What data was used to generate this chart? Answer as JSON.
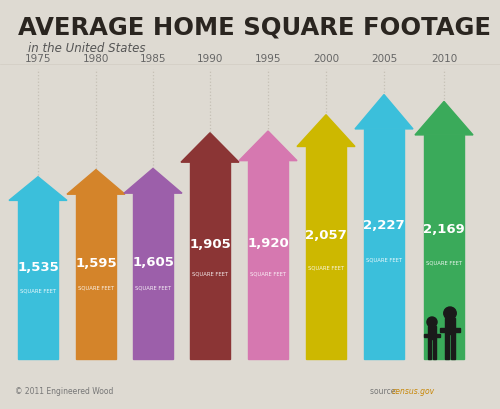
{
  "title": "AVERAGE HOME SQUARE FOOTAGE",
  "subtitle": "in the United States",
  "years": [
    "1975",
    "1980",
    "1985",
    "1990",
    "1995",
    "2000",
    "2005",
    "2010"
  ],
  "values": [
    1535,
    1595,
    1605,
    1905,
    1920,
    2057,
    2227,
    2169
  ],
  "colors": [
    "#3bbfdb",
    "#d4842a",
    "#9c5faa",
    "#8b3535",
    "#d678b0",
    "#cdb800",
    "#3bbfdb",
    "#3aaa5a"
  ],
  "bg_color": "#dedad2",
  "chart_bg": "#dedad2",
  "grid_color": "#c5c0b5",
  "footer_left": "© 2011 Engineered Wood",
  "footer_right": "source: ",
  "source_text": "census.gov",
  "source_color": "#c8880a",
  "person_color": "#1a1a1a",
  "year_label_color": "#666666",
  "value_color": "#ffffff",
  "sqft_color": "#ffffff",
  "title_color": "#2a2520",
  "subtitle_color": "#555555"
}
